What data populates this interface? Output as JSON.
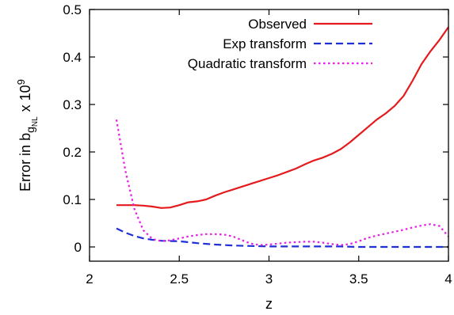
{
  "chart_data": {
    "type": "line",
    "xlabel": "z",
    "ylabel_prefix": "Error in  b",
    "ylabel_sub": "g",
    "ylabel_subsub": "NL",
    "ylabel_suffix": "x 10",
    "ylabel_exp": "9",
    "xlim": [
      2,
      4
    ],
    "ylim": [
      -0.03,
      0.5
    ],
    "xticks": [
      "2",
      "2.5",
      "3",
      "3.5",
      "4"
    ],
    "yticks": [
      "0",
      "0.1",
      "0.2",
      "0.3",
      "0.4",
      "0.5"
    ],
    "legend_position": "top-right",
    "grid": false,
    "series": [
      {
        "name": "Observed",
        "color": "#e41a1c",
        "style": "solid",
        "x": [
          2.15,
          2.2,
          2.25,
          2.3,
          2.35,
          2.4,
          2.45,
          2.5,
          2.55,
          2.6,
          2.65,
          2.7,
          2.75,
          2.8,
          2.85,
          2.9,
          2.95,
          3.0,
          3.05,
          3.1,
          3.15,
          3.2,
          3.25,
          3.3,
          3.35,
          3.4,
          3.45,
          3.5,
          3.55,
          3.6,
          3.65,
          3.7,
          3.75,
          3.8,
          3.85,
          3.9,
          3.95,
          4.0
        ],
        "y": [
          0.088,
          0.088,
          0.088,
          0.087,
          0.085,
          0.082,
          0.083,
          0.088,
          0.094,
          0.096,
          0.1,
          0.108,
          0.115,
          0.121,
          0.127,
          0.133,
          0.139,
          0.145,
          0.151,
          0.158,
          0.165,
          0.174,
          0.182,
          0.188,
          0.196,
          0.206,
          0.22,
          0.236,
          0.252,
          0.268,
          0.281,
          0.297,
          0.318,
          0.35,
          0.385,
          0.412,
          0.436,
          0.463
        ]
      },
      {
        "name": "Exp transform",
        "color": "#1f2fd6",
        "style": "dashed",
        "x": [
          2.15,
          2.2,
          2.25,
          2.3,
          2.35,
          2.4,
          2.5,
          2.6,
          2.7,
          2.8,
          2.9,
          3.0,
          3.1,
          3.2,
          3.3,
          3.4,
          3.5,
          3.6,
          3.7,
          3.8,
          3.9,
          4.0
        ],
        "y": [
          0.039,
          0.03,
          0.023,
          0.018,
          0.015,
          0.013,
          0.012,
          0.008,
          0.005,
          0.003,
          0.002,
          0.001,
          0.001,
          0.001,
          0.001,
          0.001,
          0.0,
          0.0,
          0.0,
          0.0,
          0.0,
          0.0
        ]
      },
      {
        "name": "Quadratic transform",
        "color": "#e61ee6",
        "style": "dotted",
        "x": [
          2.15,
          2.2,
          2.25,
          2.3,
          2.35,
          2.4,
          2.45,
          2.5,
          2.55,
          2.6,
          2.65,
          2.7,
          2.75,
          2.8,
          2.85,
          2.9,
          2.95,
          3.0,
          3.05,
          3.1,
          3.15,
          3.2,
          3.25,
          3.3,
          3.35,
          3.4,
          3.45,
          3.5,
          3.55,
          3.6,
          3.65,
          3.7,
          3.75,
          3.8,
          3.85,
          3.9,
          3.95,
          4.0
        ],
        "y": [
          0.268,
          0.16,
          0.08,
          0.035,
          0.017,
          0.012,
          0.014,
          0.018,
          0.022,
          0.025,
          0.027,
          0.027,
          0.026,
          0.022,
          0.014,
          0.007,
          0.004,
          0.005,
          0.007,
          0.009,
          0.01,
          0.011,
          0.011,
          0.009,
          0.006,
          0.004,
          0.006,
          0.012,
          0.019,
          0.024,
          0.028,
          0.032,
          0.036,
          0.041,
          0.045,
          0.048,
          0.044,
          0.022
        ]
      }
    ]
  }
}
